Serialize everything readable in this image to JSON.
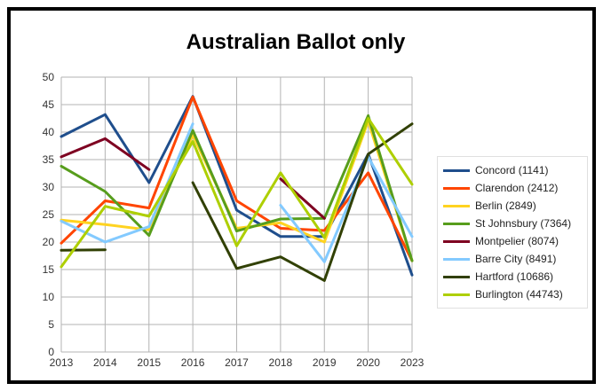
{
  "chart_data": {
    "type": "line",
    "title": "Australian Ballot only",
    "xlabel": "",
    "ylabel": "",
    "categories": [
      "2013",
      "2014",
      "2015",
      "2016",
      "2017",
      "2018",
      "2019",
      "2020",
      "2023"
    ],
    "y_ticks": [
      "0",
      "5",
      "10",
      "15",
      "20",
      "25",
      "30",
      "35",
      "40",
      "45",
      "50"
    ],
    "ylim": [
      0,
      50
    ],
    "grid": true,
    "legend_position": "right",
    "series": [
      {
        "name": "Concord (1141)",
        "color": "#1f4e8c",
        "values": [
          39.2,
          43.2,
          30.8,
          46.5,
          25.8,
          21,
          21,
          36,
          14
        ]
      },
      {
        "name": "Clarendon (2412)",
        "color": "#ff4500",
        "values": [
          19.8,
          27.5,
          26.2,
          46.4,
          27.5,
          22.5,
          22.1,
          32.6,
          16.6
        ]
      },
      {
        "name": "Berlin (2849)",
        "color": "#ffd320",
        "values": [
          24,
          23.2,
          22.2,
          39.5,
          22.5,
          23.5,
          20,
          42,
          16.6
        ]
      },
      {
        "name": "St Johnsbury (7364)",
        "color": "#579d1c",
        "values": [
          33.8,
          29.2,
          21.2,
          40.3,
          22,
          24.2,
          24.3,
          43,
          16.6
        ]
      },
      {
        "name": "Montpelier (8074)",
        "color": "#7e0021",
        "values": [
          35.5,
          38.8,
          33.2,
          null,
          null,
          31.5,
          24.3,
          null,
          null
        ]
      },
      {
        "name": "Barre City (8491)",
        "color": "#83caff",
        "values": [
          23.8,
          20,
          22.8,
          41.5,
          null,
          26.7,
          16.4,
          35.5,
          21
        ]
      },
      {
        "name": "Hartford (10686)",
        "color": "#314004",
        "values": [
          18.5,
          18.6,
          null,
          30.8,
          15.2,
          17.3,
          13,
          36,
          41.5
        ]
      },
      {
        "name": "Burlington (44743)",
        "color": "#aecf00",
        "values": [
          15.5,
          26.5,
          24.7,
          38.3,
          19.3,
          32.6,
          20.8,
          42.5,
          30.5
        ]
      }
    ]
  }
}
